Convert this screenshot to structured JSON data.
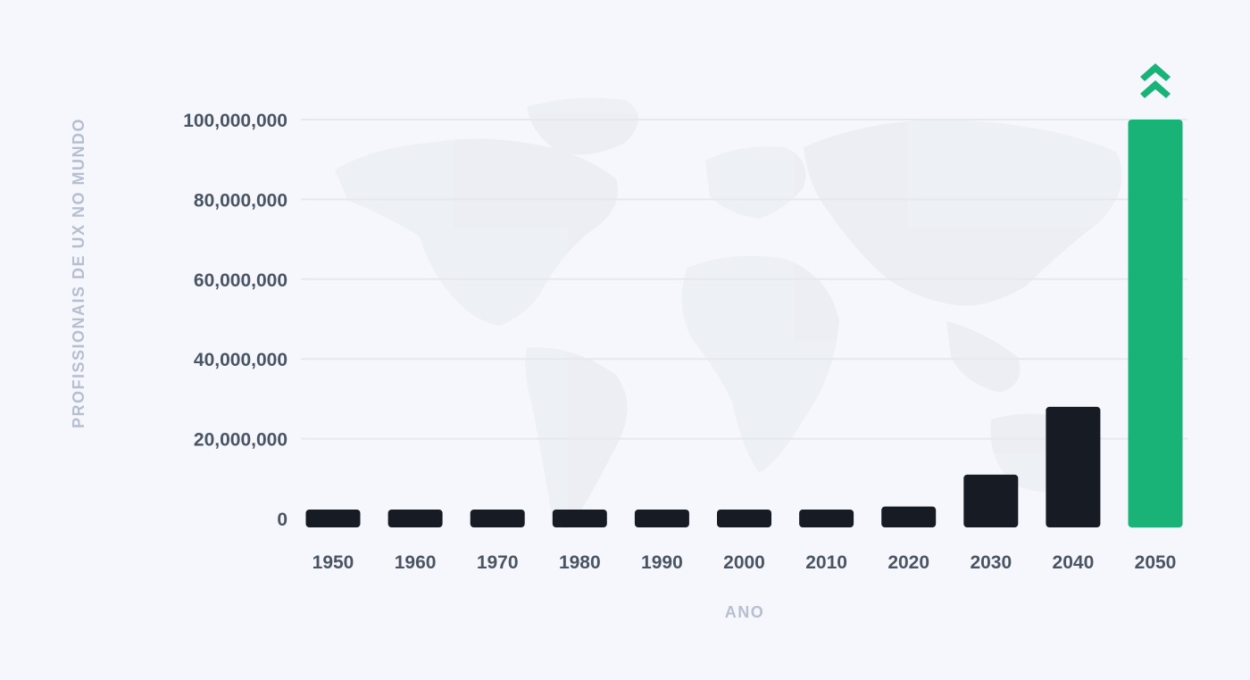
{
  "colors": {
    "background": "#f6f7fd",
    "bar": "#161b24",
    "highlight": "#1ab377",
    "grid": "#e6e8ee",
    "tick_text": "#4a5563",
    "axis_title_text": "#b5bfcf",
    "map": "#eceef3"
  },
  "chart_data": {
    "type": "bar",
    "title": "",
    "xlabel": "ANO",
    "ylabel": "PROFISSIONAIS DE UX NO MUNDO",
    "categories": [
      "1950",
      "1960",
      "1970",
      "1980",
      "1990",
      "2000",
      "2010",
      "2020",
      "2030",
      "2040",
      "2050"
    ],
    "values": [
      100000,
      100000,
      100000,
      100000,
      100000,
      100000,
      100000,
      3000000,
      11000000,
      28000000,
      100000000
    ],
    "ylim": [
      0,
      100000000
    ],
    "yticks": [
      {
        "value": 0,
        "label": "0"
      },
      {
        "value": 20000000,
        "label": "20,000,000"
      },
      {
        "value": 40000000,
        "label": "40,000,000"
      },
      {
        "value": 60000000,
        "label": "60,000,000"
      },
      {
        "value": 80000000,
        "label": "80,000,000"
      },
      {
        "value": 100000000,
        "label": "100,000,000"
      }
    ],
    "highlight_category": "2050",
    "highlight_icon": "double-chevron-up-icon",
    "grid": true,
    "legend": "none",
    "background_decoration": "world-map"
  }
}
